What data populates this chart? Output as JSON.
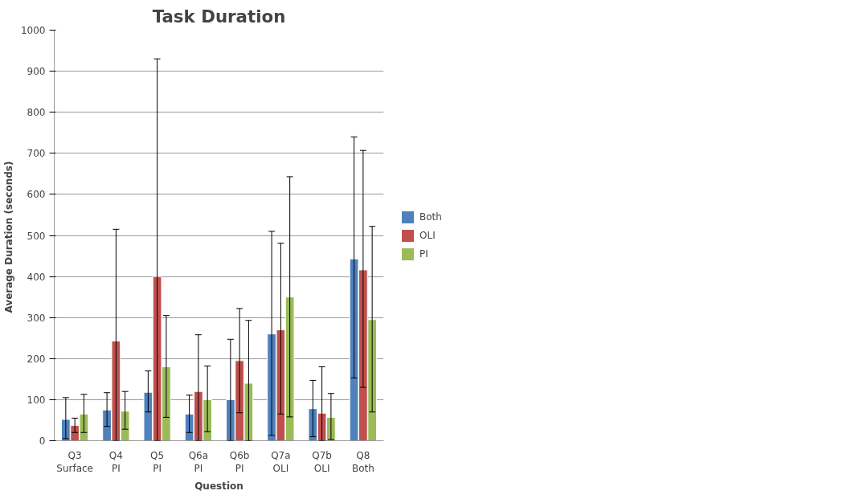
{
  "chart_data": {
    "type": "bar",
    "title": "Task Duration",
    "xlabel": "Question",
    "ylabel": "Average Duration  (seconds)",
    "categories": [
      "Q3\nSurface",
      "Q4\nPI",
      "Q5\nPI",
      "Q6a\nPI",
      "Q6b\nPI",
      "Q7a\nOLI",
      "Q7b\nOLI",
      "Q8\nBoth"
    ],
    "series": [
      {
        "name": "Both",
        "color": "#4f81bd",
        "values": [
          52,
          75,
          118,
          65,
          100,
          260,
          78,
          443
        ],
        "errors": [
          [
            5,
            105
          ],
          [
            35,
            117
          ],
          [
            70,
            170
          ],
          [
            20,
            111
          ],
          [
            0,
            247
          ],
          [
            13,
            510
          ],
          [
            10,
            147
          ],
          [
            153,
            740
          ]
        ]
      },
      {
        "name": "OLI",
        "color": "#c0504d",
        "values": [
          37,
          243,
          400,
          120,
          195,
          270,
          67,
          416
        ],
        "errors": [
          [
            20,
            55
          ],
          [
            0,
            515
          ],
          [
            0,
            930
          ],
          [
            0,
            258
          ],
          [
            68,
            322
          ],
          [
            65,
            481
          ],
          [
            0,
            180
          ],
          [
            130,
            707
          ]
        ]
      },
      {
        "name": "PI",
        "color": "#9bbb59",
        "values": [
          65,
          72,
          180,
          100,
          140,
          350,
          57,
          295
        ],
        "errors": [
          [
            20,
            113
          ],
          [
            28,
            120
          ],
          [
            57,
            305
          ],
          [
            22,
            182
          ],
          [
            0,
            293
          ],
          [
            58,
            643
          ],
          [
            3,
            115
          ],
          [
            70,
            522
          ]
        ]
      }
    ],
    "ylim": [
      0,
      1000
    ],
    "yticks": [
      0,
      100,
      200,
      300,
      400,
      500,
      600,
      700,
      800,
      900,
      1000
    ],
    "grid": "y",
    "legend": "right"
  }
}
